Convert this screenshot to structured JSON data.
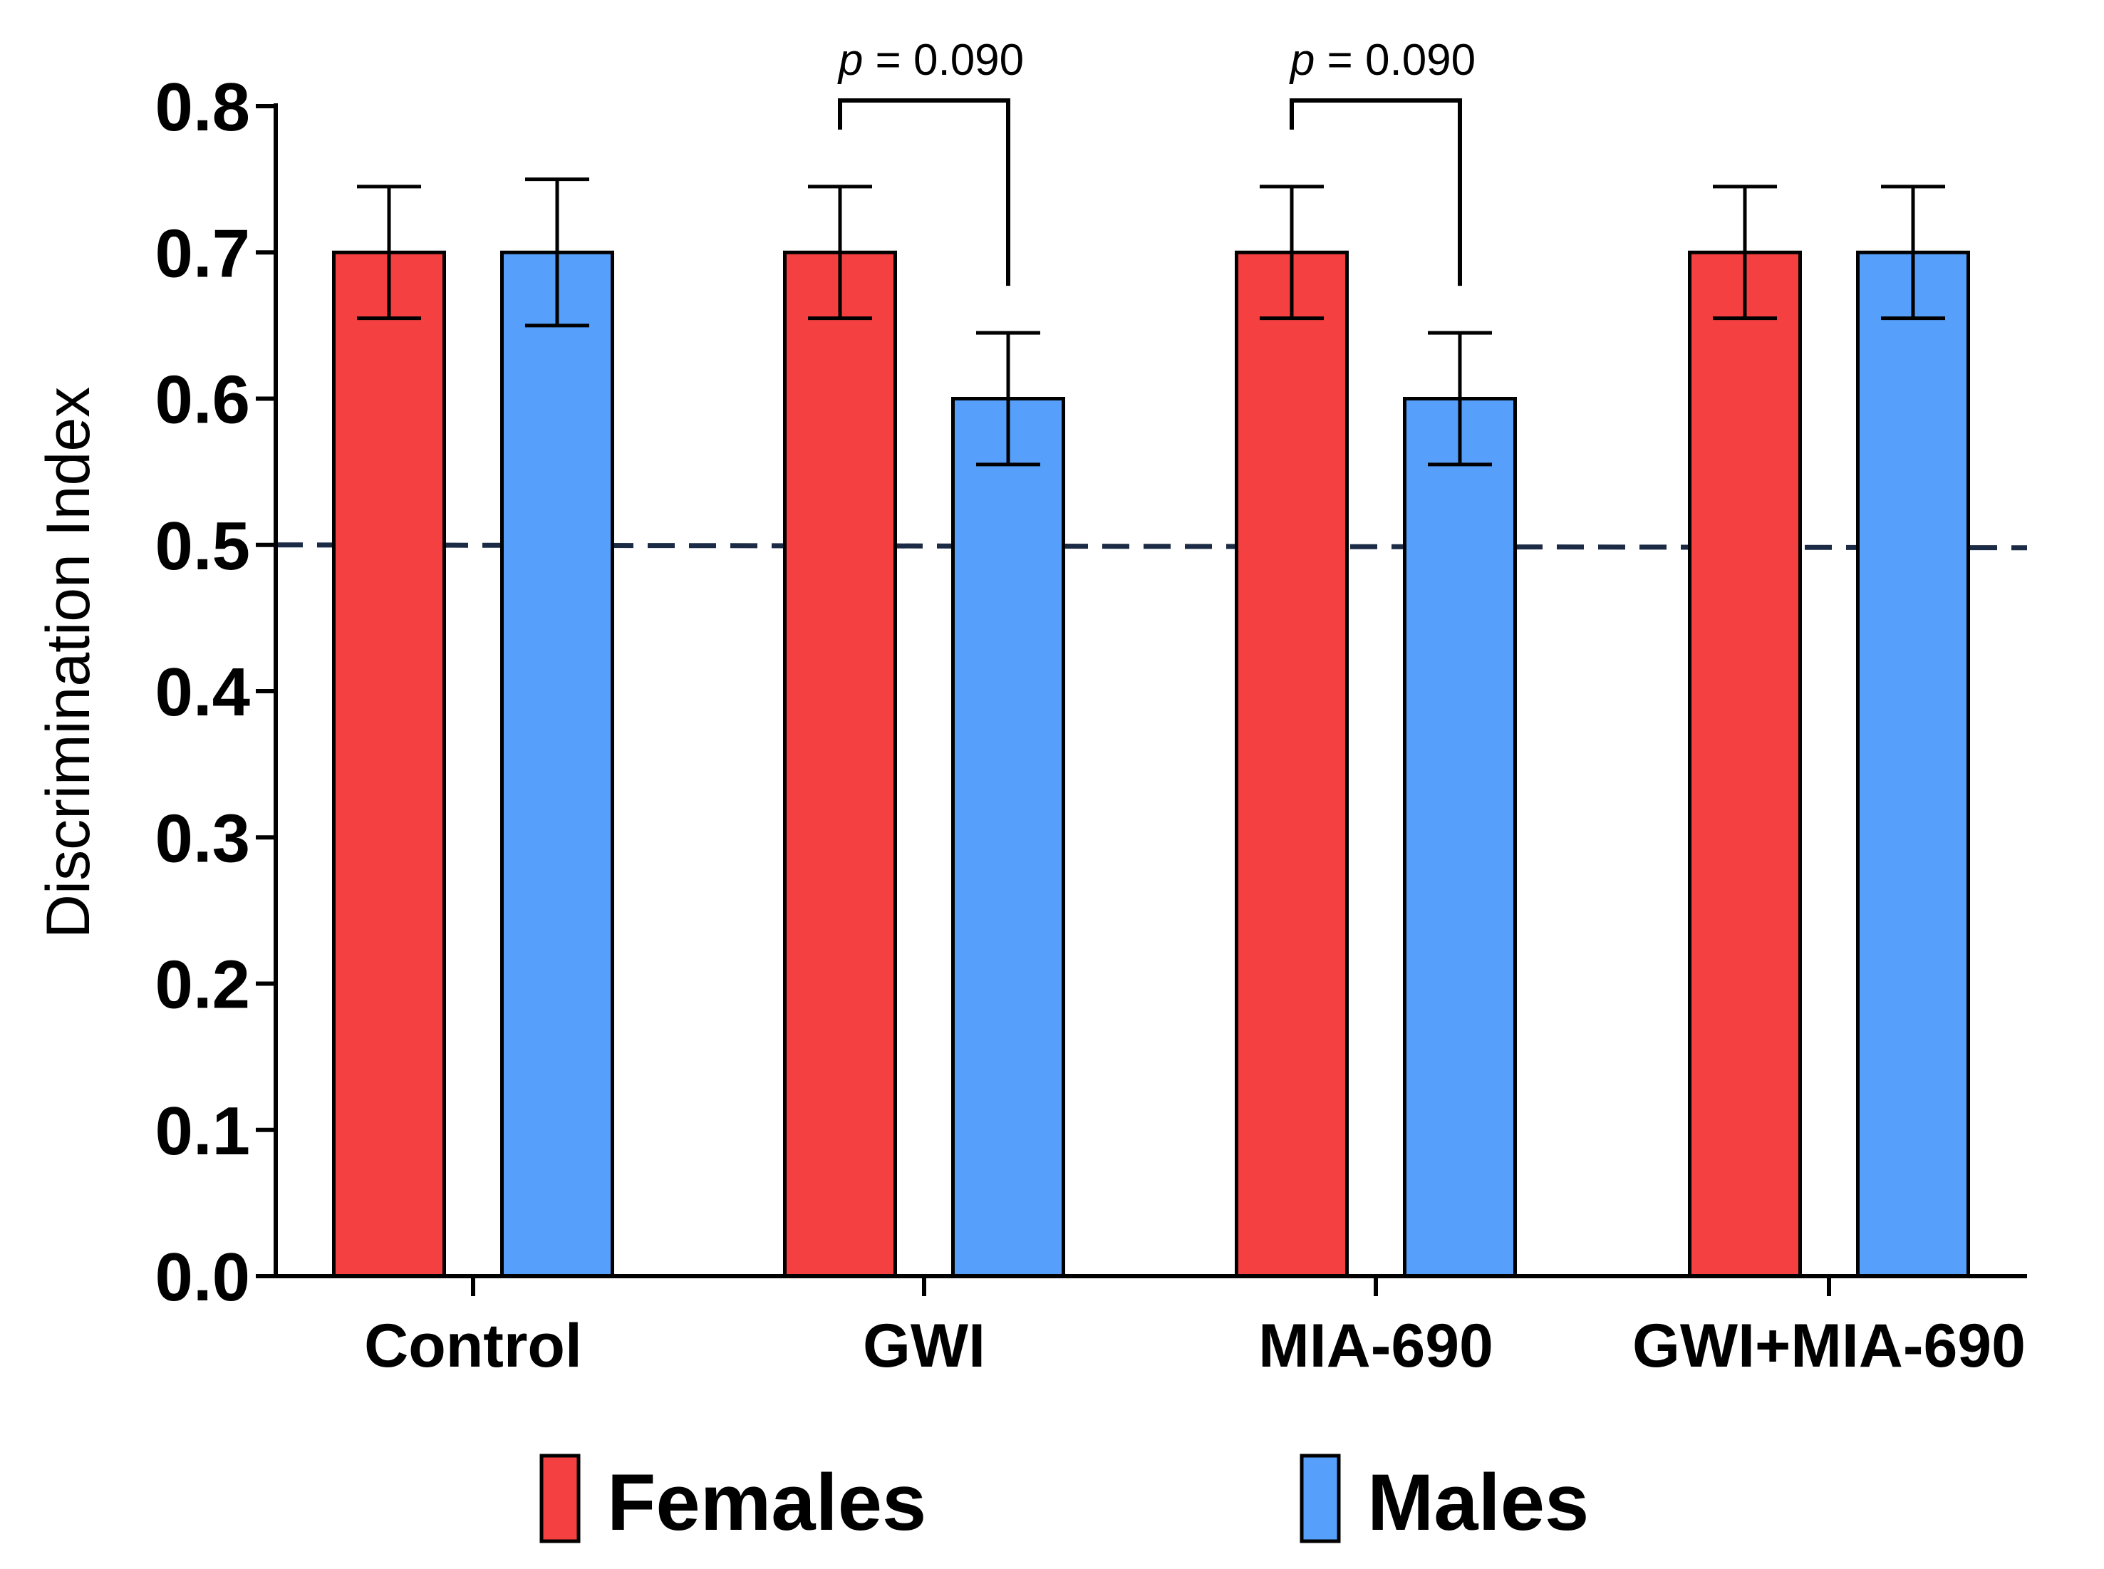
{
  "chart_data": {
    "type": "bar",
    "title": "",
    "xlabel": "",
    "ylabel": "Discrimination Index",
    "ylim": [
      0,
      0.8
    ],
    "yticks": [
      "0.0",
      "0.1",
      "0.2",
      "0.3",
      "0.4",
      "0.5",
      "0.6",
      "0.7",
      "0.8"
    ],
    "categories": [
      "Control",
      "GWI",
      "MIA-690",
      "GWI+MIA-690"
    ],
    "series": [
      {
        "name": "Females",
        "color": "#f44040",
        "values": [
          0.7,
          0.7,
          0.7,
          0.7
        ],
        "errors": [
          0.045,
          0.045,
          0.045,
          0.045
        ]
      },
      {
        "name": "Males",
        "color": "#56a0fc",
        "values": [
          0.7,
          0.6,
          0.6,
          0.7
        ],
        "errors": [
          0.05,
          0.045,
          0.045,
          0.045
        ]
      }
    ],
    "reference_line": {
      "value": 0.5,
      "style": "dashed",
      "color": "#1c2b45"
    },
    "annotations": [
      {
        "category": "GWI",
        "label_italic": "p",
        "label_rest": " = 0.090"
      },
      {
        "category": "MIA-690",
        "label_italic": "p",
        "label_rest": " = 0.090"
      }
    ],
    "legend": {
      "position": "bottom",
      "entries": [
        "Females",
        "Males"
      ]
    }
  }
}
